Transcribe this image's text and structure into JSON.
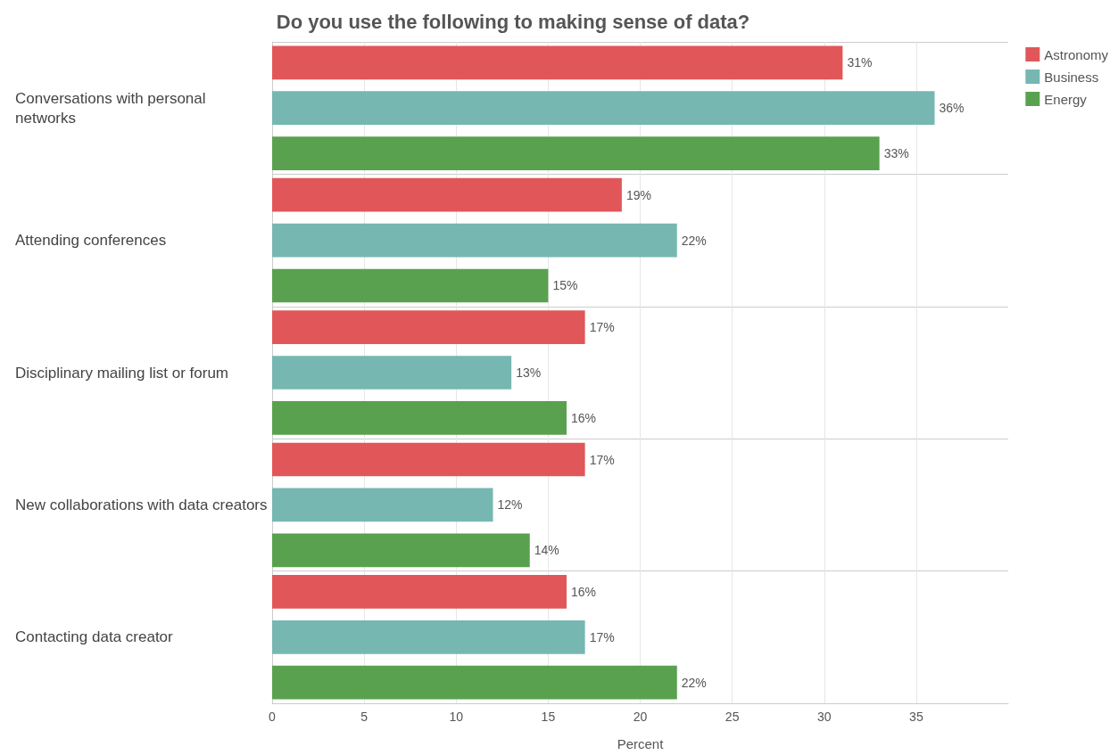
{
  "chart_data": {
    "type": "bar",
    "orientation": "horizontal",
    "title": "Do you use the following to making sense of data?",
    "xlabel": "Percent",
    "categories": [
      "Conversations with personal networks",
      "Attending conferences",
      "Disciplinary mailing list or forum",
      "New collaborations with data creators",
      "Contacting data creator"
    ],
    "series": [
      {
        "name": "Astronomy",
        "color": "#e15759",
        "values": [
          31,
          19,
          17,
          17,
          16
        ],
        "value_labels": [
          "31%",
          "19%",
          "17%",
          "17%",
          "16%"
        ]
      },
      {
        "name": "Business",
        "color": "#76b7b2",
        "values": [
          36,
          22,
          13,
          12,
          17
        ],
        "value_labels": [
          "36%",
          "22%",
          "13%",
          "12%",
          "17%"
        ]
      },
      {
        "name": "Energy",
        "color": "#59a14f",
        "values": [
          33,
          15,
          16,
          14,
          22
        ],
        "value_labels": [
          "33%",
          "15%",
          "16%",
          "14%",
          "22%"
        ]
      }
    ],
    "xlim": [
      0,
      40
    ],
    "xticks": [
      0,
      5,
      10,
      15,
      20,
      25,
      30,
      35
    ],
    "grid": "x",
    "legend": "top right"
  }
}
